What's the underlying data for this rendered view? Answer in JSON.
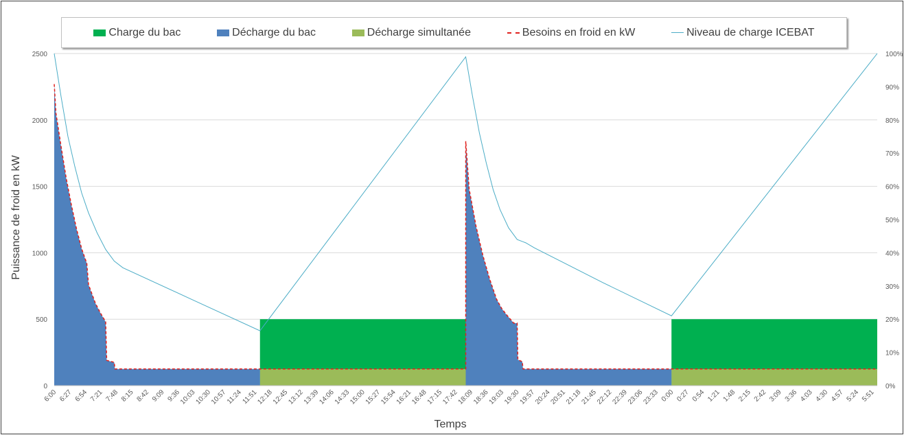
{
  "chart_data": {
    "type": "area",
    "ylabel": "Puissance de froid en kW",
    "xlabel": "Temps",
    "ylim": [
      0,
      2500
    ],
    "y_ticks": [
      "0",
      "500",
      "1000",
      "1500",
      "2000",
      "2500"
    ],
    "y2lim": [
      0,
      100
    ],
    "y2_ticks": [
      "0%",
      "10%",
      "20%",
      "30%",
      "40%",
      "50%",
      "60%",
      "70%",
      "80%",
      "90%",
      "100%"
    ],
    "x_ticks": [
      "6:00",
      "6:27",
      "6:54",
      "7:21",
      "7:48",
      "8:15",
      "8:42",
      "9:09",
      "9:36",
      "10:03",
      "10:30",
      "10:57",
      "11:24",
      "11:51",
      "12:18",
      "12:45",
      "13:12",
      "13:39",
      "14:06",
      "14:33",
      "15:00",
      "15:27",
      "15:54",
      "16:21",
      "16:48",
      "17:15",
      "17:42",
      "18:09",
      "18:36",
      "19:03",
      "19:30",
      "19:57",
      "20:24",
      "20:51",
      "21:18",
      "21:45",
      "22:12",
      "22:39",
      "23:06",
      "23:33",
      "0:00",
      "0:27",
      "0:54",
      "1:21",
      "1:48",
      "2:15",
      "2:42",
      "3:09",
      "3:36",
      "4:03",
      "4:30",
      "4:57",
      "5:24",
      "5:51"
    ],
    "x_hours": [
      6.0,
      30.0
    ],
    "legend_position": "top",
    "legend": [
      {
        "key": "charge",
        "label": "Charge du bac",
        "color": "#00b050",
        "style": "area"
      },
      {
        "key": "decharge",
        "label": "Décharge du bac",
        "color": "#4f81bd",
        "style": "area"
      },
      {
        "key": "simult",
        "label": "Décharge simultanée",
        "color": "#9bbb59",
        "style": "area"
      },
      {
        "key": "besoins",
        "label": "Besoins en froid en kW",
        "color": "#e0211d",
        "style": "dash"
      },
      {
        "key": "niveau",
        "label": "Niveau de charge ICEBAT",
        "color": "#4bacc6",
        "style": "line"
      }
    ],
    "series": [
      {
        "name": "Décharge du bac",
        "type": "area",
        "x": [
          6.0,
          6.05,
          6.2,
          6.35,
          6.5,
          6.65,
          6.8,
          6.95,
          7.0,
          7.2,
          7.35,
          7.5,
          7.53,
          7.75,
          7.77,
          12.0,
          12.0,
          18.0,
          18.0,
          18.1,
          18.3,
          18.5,
          18.7,
          18.9,
          19.05,
          19.2,
          19.4,
          19.5,
          19.52,
          19.65,
          19.67,
          24.0
        ],
        "y": [
          2270,
          2050,
          1800,
          1560,
          1360,
          1180,
          1030,
          920,
          760,
          620,
          545,
          480,
          190,
          175,
          125,
          125,
          0,
          0,
          1840,
          1480,
          1200,
          980,
          800,
          650,
          580,
          530,
          470,
          470,
          195,
          180,
          125,
          125
        ]
      },
      {
        "name": "Décharge simultanée",
        "type": "area",
        "x": [
          12.0,
          18.0,
          24.0,
          30.0
        ],
        "y": [
          125,
          125,
          125,
          125
        ]
      },
      {
        "name": "Charge du bac",
        "type": "area",
        "x": [
          12.0,
          18.0,
          24.0,
          30.0
        ],
        "y": [
          500,
          500,
          500,
          500
        ]
      },
      {
        "name": "Besoins en froid en kW",
        "type": "line",
        "x": [
          6.0,
          6.05,
          6.2,
          6.35,
          6.5,
          6.65,
          6.8,
          6.95,
          7.0,
          7.2,
          7.35,
          7.5,
          7.53,
          7.75,
          7.77,
          18.0,
          18.0,
          18.1,
          18.3,
          18.5,
          18.7,
          18.9,
          19.05,
          19.2,
          19.4,
          19.5,
          19.52,
          19.65,
          19.67,
          30.0
        ],
        "y": [
          2270,
          2050,
          1800,
          1560,
          1360,
          1180,
          1030,
          920,
          760,
          620,
          545,
          480,
          190,
          175,
          125,
          125,
          1840,
          1480,
          1200,
          980,
          800,
          650,
          580,
          530,
          470,
          470,
          195,
          180,
          125,
          125
        ]
      },
      {
        "name": "Niveau de charge ICEBAT",
        "type": "line",
        "axis": "y2",
        "x": [
          6.0,
          6.2,
          6.4,
          6.6,
          6.8,
          7.0,
          7.25,
          7.5,
          7.75,
          8.0,
          10.0,
          12.0,
          18.0,
          18.2,
          18.4,
          18.6,
          18.8,
          19.0,
          19.25,
          19.5,
          19.75,
          20.0,
          22.0,
          24.0,
          30.0
        ],
        "y": [
          100,
          87,
          75,
          66,
          58,
          52,
          46,
          41,
          37.5,
          35.5,
          26,
          16.5,
          99,
          87,
          76,
          67,
          59,
          53,
          47.5,
          44,
          43,
          41.5,
          31,
          21,
          100
        ]
      }
    ]
  }
}
